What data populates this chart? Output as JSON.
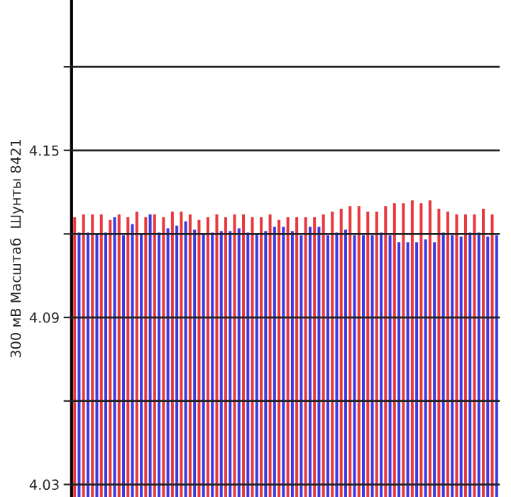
{
  "chart_data": {
    "type": "bar",
    "ylabel": "300 мВ Масштаб  Шунты 8421",
    "categories": [
      null,
      null,
      null,
      null,
      null,
      null,
      null,
      null,
      null,
      null,
      null,
      null,
      null,
      null,
      null,
      null,
      null,
      null,
      null,
      null,
      null,
      null,
      null,
      null,
      null,
      null,
      null,
      null,
      null,
      null,
      null,
      null,
      null,
      null,
      null,
      null,
      null,
      null,
      null,
      null,
      null,
      null,
      null,
      null,
      null,
      null,
      null,
      null
    ],
    "series": [
      {
        "color": "#e8383d",
        "values": [
          4.126,
          4.127,
          4.127,
          4.127,
          4.125,
          4.127,
          4.126,
          4.128,
          4.126,
          4.127,
          4.126,
          4.128,
          4.128,
          4.127,
          4.125,
          4.126,
          4.127,
          4.126,
          4.127,
          4.127,
          4.126,
          4.126,
          4.127,
          4.125,
          4.126,
          4.126,
          4.126,
          4.126,
          4.127,
          4.128,
          4.129,
          4.13,
          4.13,
          4.128,
          4.128,
          4.13,
          4.131,
          4.131,
          4.132,
          4.131,
          4.132,
          4.129,
          4.128,
          4.127,
          4.127,
          4.127,
          4.129,
          4.127
        ]
      },
      {
        "color": "#3a3ae0",
        "values": [
          4.1205,
          4.1205,
          4.12,
          4.1205,
          4.126,
          4.1195,
          4.1235,
          4.12,
          4.127,
          4.1205,
          4.122,
          4.123,
          4.1245,
          4.1215,
          4.12,
          4.1205,
          4.121,
          4.121,
          4.122,
          4.1205,
          4.12,
          4.121,
          4.1225,
          4.1225,
          4.121,
          4.1195,
          4.1225,
          4.1225,
          4.1195,
          4.1205,
          4.1215,
          4.1195,
          4.1195,
          4.1195,
          4.1205,
          4.1195,
          4.117,
          4.117,
          4.117,
          4.118,
          4.117,
          4.1205,
          4.1195,
          4.119,
          4.1205,
          4.1205,
          4.119,
          4.1195
        ]
      }
    ],
    "ylim": [
      4.0255,
      4.204
    ],
    "yticks": [
      4.03,
      {
        "value": 4.06,
        "label": null
      },
      4.09,
      {
        "value": 4.12,
        "label": null
      },
      4.15,
      {
        "value": 4.18,
        "label": null
      }
    ],
    "tick_labels": "y",
    "grid": "y"
  }
}
